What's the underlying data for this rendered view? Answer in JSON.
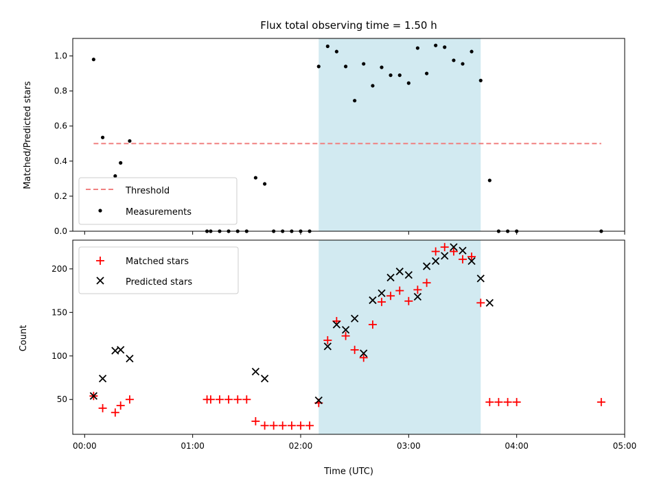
{
  "title": "Flux total observing time = 1.50 h",
  "colors": {
    "shade": "#add8e6",
    "threshold": "#f08080",
    "measurement": "#000000",
    "matched": "#ff0000",
    "predicted": "#000000"
  },
  "chart_data": [
    {
      "type": "scatter",
      "name": "top",
      "ylabel": "Matched/Predicted stars",
      "xlim": [
        -0.11,
        5.0
      ],
      "ylim": [
        0.0,
        1.1
      ],
      "yticks": [
        0.0,
        0.2,
        0.4,
        0.6,
        0.8,
        1.0
      ],
      "yticklabels": [
        "0.0",
        "0.2",
        "0.4",
        "0.6",
        "0.8",
        "1.0"
      ],
      "shaded_region": [
        2.167,
        3.667
      ],
      "threshold": {
        "value": 0.5,
        "x": [
          0.083,
          4.783
        ]
      },
      "legend": {
        "position": "lower-left",
        "entries": [
          "Threshold",
          "Measurements"
        ]
      },
      "measurements": [
        [
          0.083,
          0.98
        ],
        [
          0.167,
          0.535
        ],
        [
          0.283,
          0.315
        ],
        [
          0.333,
          0.39
        ],
        [
          0.417,
          0.515
        ],
        [
          1.133,
          0.0
        ],
        [
          1.167,
          0.0
        ],
        [
          1.25,
          0.0
        ],
        [
          1.333,
          0.0
        ],
        [
          1.417,
          0.0
        ],
        [
          1.5,
          0.0
        ],
        [
          1.583,
          0.305
        ],
        [
          1.667,
          0.27
        ],
        [
          1.75,
          0.0
        ],
        [
          1.833,
          0.0
        ],
        [
          1.917,
          0.0
        ],
        [
          2.0,
          0.0
        ],
        [
          2.083,
          0.0
        ],
        [
          2.167,
          0.94
        ],
        [
          2.25,
          1.055
        ],
        [
          2.333,
          1.025
        ],
        [
          2.417,
          0.94
        ],
        [
          2.5,
          0.745
        ],
        [
          2.583,
          0.955
        ],
        [
          2.667,
          0.83
        ],
        [
          2.75,
          0.935
        ],
        [
          2.833,
          0.89
        ],
        [
          2.917,
          0.89
        ],
        [
          3.0,
          0.845
        ],
        [
          3.083,
          1.045
        ],
        [
          3.167,
          0.9
        ],
        [
          3.25,
          1.06
        ],
        [
          3.333,
          1.05
        ],
        [
          3.417,
          0.975
        ],
        [
          3.5,
          0.955
        ],
        [
          3.583,
          1.025
        ],
        [
          3.667,
          0.86
        ],
        [
          3.75,
          0.29
        ],
        [
          3.833,
          0.0
        ],
        [
          3.917,
          0.0
        ],
        [
          4.0,
          0.0
        ],
        [
          4.783,
          0.0
        ]
      ]
    },
    {
      "type": "scatter",
      "name": "bottom",
      "xlabel": "Time (UTC)",
      "ylabel": "Count",
      "xlim": [
        -0.11,
        5.0
      ],
      "ylim": [
        10,
        233
      ],
      "xticks": [
        0,
        1,
        2,
        3,
        4,
        5
      ],
      "xticklabels": [
        "00:00",
        "01:00",
        "02:00",
        "03:00",
        "04:00",
        "05:00"
      ],
      "yticks": [
        50,
        100,
        150,
        200
      ],
      "yticklabels": [
        "50",
        "100",
        "150",
        "200"
      ],
      "shaded_region": [
        2.167,
        3.667
      ],
      "legend": {
        "position": "upper-left",
        "entries": [
          "Matched stars",
          "Predicted stars"
        ]
      },
      "matched": [
        [
          0.083,
          54
        ],
        [
          0.167,
          40
        ],
        [
          0.283,
          35
        ],
        [
          0.333,
          43
        ],
        [
          0.417,
          50
        ],
        [
          1.133,
          50
        ],
        [
          1.167,
          50
        ],
        [
          1.25,
          50
        ],
        [
          1.333,
          50
        ],
        [
          1.417,
          50
        ],
        [
          1.5,
          50
        ],
        [
          1.583,
          25
        ],
        [
          1.667,
          20
        ],
        [
          1.75,
          20
        ],
        [
          1.833,
          20
        ],
        [
          1.917,
          20
        ],
        [
          2.0,
          20
        ],
        [
          2.083,
          20
        ],
        [
          2.167,
          46
        ],
        [
          2.25,
          118
        ],
        [
          2.333,
          140
        ],
        [
          2.417,
          123
        ],
        [
          2.5,
          107
        ],
        [
          2.583,
          98
        ],
        [
          2.667,
          136
        ],
        [
          2.75,
          162
        ],
        [
          2.833,
          169
        ],
        [
          2.917,
          175
        ],
        [
          3.0,
          163
        ],
        [
          3.083,
          176
        ],
        [
          3.167,
          184
        ],
        [
          3.25,
          220
        ],
        [
          3.333,
          225
        ],
        [
          3.417,
          220
        ],
        [
          3.5,
          211
        ],
        [
          3.583,
          214
        ],
        [
          3.667,
          161
        ],
        [
          3.75,
          47
        ],
        [
          3.833,
          47
        ],
        [
          3.917,
          47
        ],
        [
          4.0,
          47
        ],
        [
          4.783,
          47
        ]
      ],
      "predicted": [
        [
          0.083,
          54
        ],
        [
          0.167,
          74
        ],
        [
          0.283,
          106
        ],
        [
          0.333,
          107
        ],
        [
          0.417,
          97
        ],
        [
          1.583,
          82
        ],
        [
          1.667,
          74
        ],
        [
          2.167,
          49
        ],
        [
          2.25,
          111
        ],
        [
          2.333,
          136
        ],
        [
          2.417,
          130
        ],
        [
          2.5,
          143
        ],
        [
          2.583,
          103
        ],
        [
          2.667,
          164
        ],
        [
          2.75,
          172
        ],
        [
          2.833,
          190
        ],
        [
          2.917,
          197
        ],
        [
          3.0,
          193
        ],
        [
          3.083,
          168
        ],
        [
          3.167,
          203
        ],
        [
          3.25,
          209
        ],
        [
          3.333,
          215
        ],
        [
          3.417,
          225
        ],
        [
          3.5,
          221
        ],
        [
          3.583,
          209
        ],
        [
          3.667,
          189
        ],
        [
          3.75,
          161
        ]
      ]
    }
  ]
}
